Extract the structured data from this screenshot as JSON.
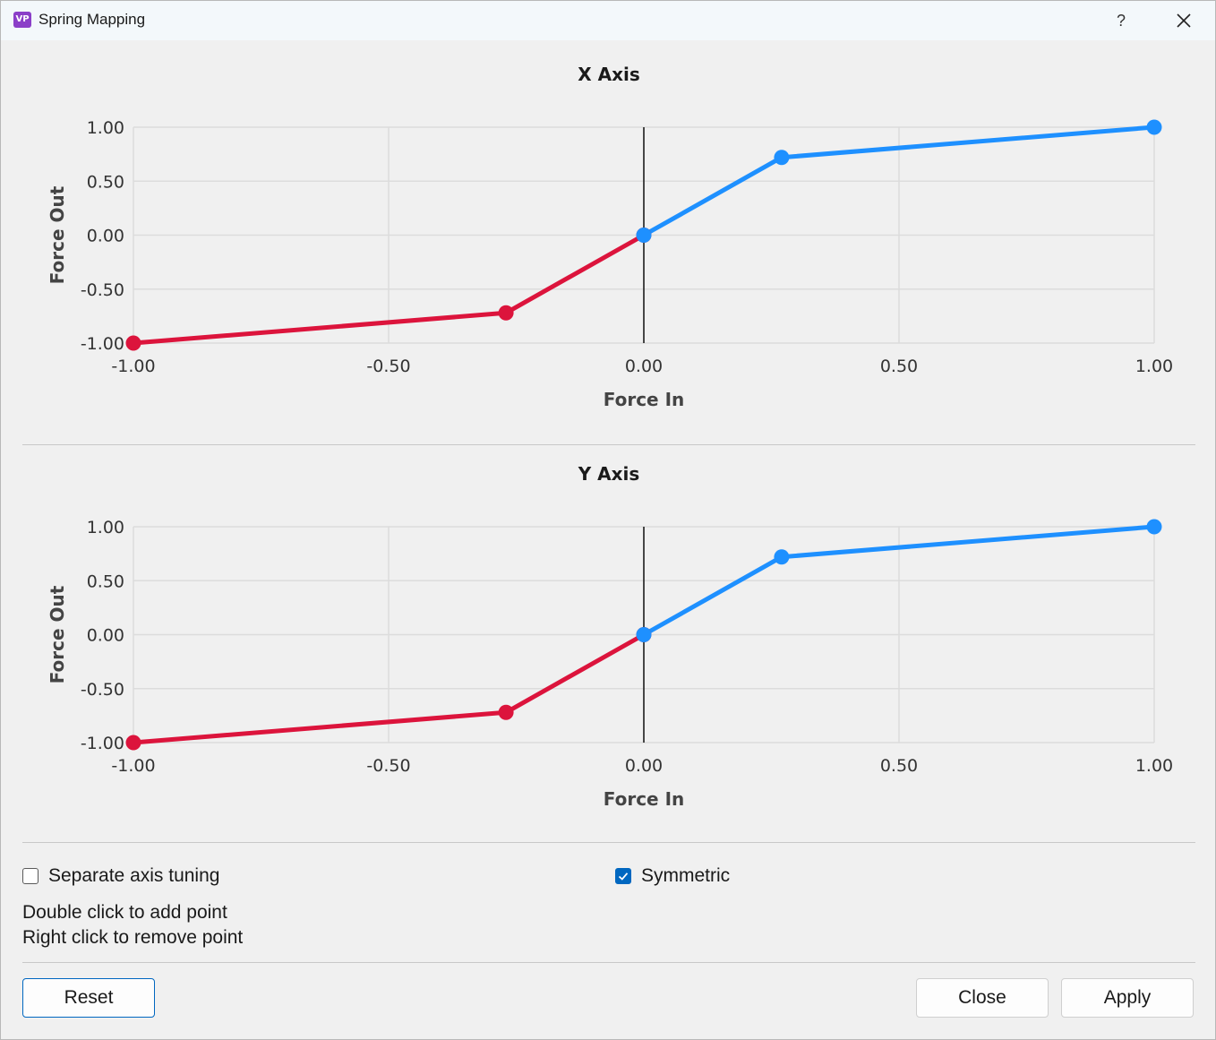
{
  "window": {
    "title": "Spring Mapping",
    "app_icon_text": "VP",
    "help_label": "?",
    "close_icon": "close-icon"
  },
  "charts": [
    {
      "title": "X Axis",
      "xlabel": "Force In",
      "ylabel": "Force Out",
      "xticks": [
        "-1.00",
        "-0.50",
        "0.00",
        "0.50",
        "1.00"
      ],
      "yticks": [
        "1.00",
        "0.50",
        "0.00",
        "-0.50",
        "-1.00"
      ]
    },
    {
      "title": "Y Axis",
      "xlabel": "Force In",
      "ylabel": "Force Out",
      "xticks": [
        "-1.00",
        "-0.50",
        "0.00",
        "0.50",
        "1.00"
      ],
      "yticks": [
        "1.00",
        "0.50",
        "0.00",
        "-0.50",
        "-1.00"
      ]
    }
  ],
  "chart_data": [
    {
      "type": "line",
      "title": "X Axis",
      "xlabel": "Force In",
      "ylabel": "Force Out",
      "xlim": [
        -1,
        1
      ],
      "ylim": [
        -1,
        1
      ],
      "grid": true,
      "series": [
        {
          "color": "#dc143c",
          "x": [
            -1.0,
            -0.27,
            0.0
          ],
          "y": [
            -1.0,
            -0.72,
            0.0
          ]
        },
        {
          "color": "#1e90ff",
          "x": [
            0.0,
            0.27,
            1.0
          ],
          "y": [
            0.0,
            0.72,
            1.0
          ]
        }
      ]
    },
    {
      "type": "line",
      "title": "Y Axis",
      "xlabel": "Force In",
      "ylabel": "Force Out",
      "xlim": [
        -1,
        1
      ],
      "ylim": [
        -1,
        1
      ],
      "grid": true,
      "series": [
        {
          "color": "#dc143c",
          "x": [
            -1.0,
            -0.27,
            0.0
          ],
          "y": [
            -1.0,
            -0.72,
            0.0
          ]
        },
        {
          "color": "#1e90ff",
          "x": [
            0.0,
            0.27,
            1.0
          ],
          "y": [
            0.0,
            0.72,
            1.0
          ]
        }
      ]
    }
  ],
  "options": {
    "separate_axis": {
      "label": "Separate axis tuning",
      "checked": false
    },
    "symmetric": {
      "label": "Symmetric",
      "checked": true
    }
  },
  "hints": {
    "add": "Double click to add point",
    "remove": "Right click to remove point"
  },
  "buttons": {
    "reset": "Reset",
    "close": "Close",
    "apply": "Apply"
  }
}
